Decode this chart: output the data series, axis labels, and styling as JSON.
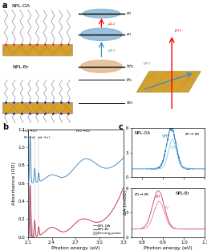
{
  "panel_b": {
    "xlim": [
      2.1,
      3.3
    ],
    "ylim": [
      0,
      1.2
    ],
    "xlabel": "Photon energy (eV)",
    "ylabel": "Absorbance (OD)",
    "yticks": [
      0.0,
      0.2,
      0.4,
      0.6,
      0.8,
      1.0,
      1.2
    ],
    "xticks": [
      2.1,
      2.4,
      2.7,
      3.0,
      3.3
    ],
    "npl_oa_color": "#4a90c4",
    "npl_br_color": "#c43a5a",
    "driving_pulse_color": "#999999",
    "legend_labels": [
      "NPL-OA",
      "NPL-Br",
      "Driving pulse"
    ]
  },
  "panel_c_top": {
    "xlim": [
      0.75,
      1.1
    ],
    "ylim": [
      0,
      6
    ],
    "yticks": [
      0,
      3,
      6
    ],
    "label": "NPL-OA",
    "color_vh": "#3a8ec4",
    "color_vv": "#80c8e8"
  },
  "panel_c_bot": {
    "xlim": [
      0.75,
      1.1
    ],
    "ylim": [
      0,
      6
    ],
    "yticks": [
      0,
      3,
      6
    ],
    "xlabel": "Photon energy (eV)",
    "ylabel": "ΔA (mOD)",
    "label": "NPL-Br",
    "color_vh": "#c43a5a",
    "color_vv": "#e8809a"
  },
  "fig_bg": "#ffffff",
  "panel_a_bg": "#ffffff"
}
